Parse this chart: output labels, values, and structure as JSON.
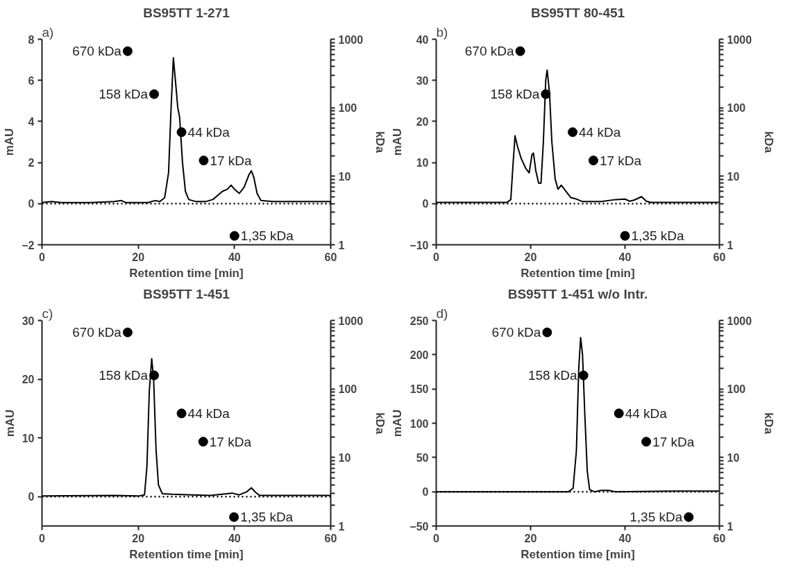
{
  "chart_data": [
    {
      "type": "line",
      "title": "BS95TT 1-271",
      "annotations": [
        "a)"
      ],
      "xlabel": "Retention time [min]",
      "ylabel": "mAU",
      "y2label": "kDa",
      "xlim": [
        0,
        60
      ],
      "xticks": [
        0,
        20,
        40,
        60
      ],
      "ylim": [
        -2,
        8
      ],
      "yticks": [
        -2,
        0,
        2,
        4,
        6,
        8
      ],
      "y2lim": [
        1,
        1000
      ],
      "y2ticks": [
        1,
        {
          "value": 2,
          "label": null
        },
        {
          "value": 3,
          "label": null
        },
        {
          "value": 4,
          "label": null
        },
        {
          "value": 5,
          "label": null
        },
        {
          "value": 6,
          "label": null
        },
        {
          "value": 7,
          "label": null
        },
        {
          "value": 8,
          "label": null
        },
        {
          "value": 9,
          "label": null
        },
        10,
        {
          "value": 20,
          "label": null
        },
        {
          "value": 30,
          "label": null
        },
        {
          "value": 40,
          "label": null
        },
        {
          "value": 50,
          "label": null
        },
        {
          "value": 60,
          "label": null
        },
        {
          "value": 70,
          "label": null
        },
        {
          "value": 80,
          "label": null
        },
        {
          "value": 90,
          "label": null
        },
        100,
        {
          "value": 200,
          "label": null
        },
        {
          "value": 300,
          "label": null
        },
        {
          "value": 400,
          "label": null
        },
        {
          "value": 500,
          "label": null
        },
        {
          "value": 600,
          "label": null
        },
        {
          "value": 700,
          "label": null
        },
        {
          "value": 800,
          "label": null
        },
        {
          "value": 900,
          "label": null
        },
        1000
      ],
      "log": "y2",
      "grid": false,
      "ref_lines": [
        {
          "axis": "y",
          "value": 0,
          "line_style": "dotted",
          "color": "#000000"
        }
      ],
      "series": [
        {
          "color": "#000000",
          "line_style": "solid",
          "x": [
            0,
            2,
            4,
            10,
            15,
            16.5,
            17.5,
            22,
            23.5,
            24.5,
            25.5,
            26.3,
            26.8,
            27.3,
            27.8,
            28.2,
            28.6,
            29.2,
            29.8,
            30.5,
            32,
            34,
            35.5,
            36.5,
            37.5,
            38.5,
            39.3,
            40,
            41,
            42,
            43,
            43.5,
            44,
            44.7,
            45.5,
            48,
            55,
            60
          ],
          "values": [
            0.05,
            0.1,
            0.05,
            0.05,
            0.1,
            0.15,
            0.05,
            0.05,
            0.15,
            0.1,
            0.3,
            1.5,
            4.5,
            7.1,
            5.8,
            4.7,
            4.2,
            2.0,
            0.6,
            0.2,
            0.1,
            0.1,
            0.2,
            0.4,
            0.6,
            0.7,
            0.9,
            0.7,
            0.5,
            0.8,
            1.4,
            1.6,
            1.3,
            0.5,
            0.15,
            0.1,
            0.1,
            0.1
          ]
        },
        {
          "type": "scatter",
          "axis": "y2",
          "color": "#000000",
          "marker": "circle",
          "x": [
            17.8,
            23.3,
            29,
            33.6,
            40
          ],
          "values": [
            670,
            158,
            44,
            17,
            1.35
          ],
          "value_labels": [
            "670 kDa",
            "158 kDa",
            "44 kDa",
            "17 kDa",
            "1,35 kDa"
          ]
        }
      ]
    },
    {
      "type": "line",
      "title": "BS95TT 80-451",
      "annotations": [
        "b)"
      ],
      "xlabel": "Retention time [min]",
      "ylabel": "mAU",
      "y2label": "kDa",
      "xlim": [
        0,
        60
      ],
      "xticks": [
        0,
        20,
        40,
        60
      ],
      "ylim": [
        -10,
        40
      ],
      "yticks": [
        -10,
        0,
        10,
        20,
        30,
        40
      ],
      "y2lim": [
        1,
        1000
      ],
      "y2ticks": [
        1,
        {
          "value": 2,
          "label": null
        },
        {
          "value": 3,
          "label": null
        },
        {
          "value": 4,
          "label": null
        },
        {
          "value": 5,
          "label": null
        },
        {
          "value": 6,
          "label": null
        },
        {
          "value": 7,
          "label": null
        },
        {
          "value": 8,
          "label": null
        },
        {
          "value": 9,
          "label": null
        },
        10,
        {
          "value": 20,
          "label": null
        },
        {
          "value": 30,
          "label": null
        },
        {
          "value": 40,
          "label": null
        },
        {
          "value": 50,
          "label": null
        },
        {
          "value": 60,
          "label": null
        },
        {
          "value": 70,
          "label": null
        },
        {
          "value": 80,
          "label": null
        },
        {
          "value": 90,
          "label": null
        },
        100,
        {
          "value": 200,
          "label": null
        },
        {
          "value": 300,
          "label": null
        },
        {
          "value": 400,
          "label": null
        },
        {
          "value": 500,
          "label": null
        },
        {
          "value": 600,
          "label": null
        },
        {
          "value": 700,
          "label": null
        },
        {
          "value": 800,
          "label": null
        },
        {
          "value": 900,
          "label": null
        },
        1000
      ],
      "log": "y2",
      "grid": false,
      "ref_lines": [
        {
          "axis": "y",
          "value": 0,
          "line_style": "dotted",
          "color": "#000000"
        }
      ],
      "series": [
        {
          "color": "#000000",
          "line_style": "solid",
          "x": [
            0,
            10,
            15,
            15.8,
            16.3,
            16.7,
            17.2,
            18,
            19,
            19.7,
            20.3,
            20.6,
            21.1,
            21.7,
            22.2,
            22.7,
            23.2,
            23.5,
            24,
            24.5,
            25.2,
            25.8,
            26.5,
            27.5,
            28.5,
            29.5,
            31,
            35,
            38,
            40,
            41,
            42,
            43.5,
            44.5,
            45.5,
            60
          ],
          "values": [
            0.3,
            0.3,
            0.3,
            1,
            10,
            16.5,
            14,
            11,
            8.5,
            7.5,
            12,
            12.3,
            8,
            5,
            5,
            15,
            30,
            32.5,
            27,
            15,
            6,
            3.5,
            4.5,
            3,
            1.5,
            1.2,
            0.5,
            0.5,
            1,
            1.1,
            0.6,
            0.9,
            1.7,
            0.6,
            0.3,
            0.3
          ]
        },
        {
          "type": "scatter",
          "axis": "y2",
          "color": "#000000",
          "marker": "circle",
          "x": [
            17.8,
            23.2,
            28.9,
            33.3,
            40
          ],
          "values": [
            670,
            158,
            44,
            17,
            1.35
          ],
          "value_labels": [
            "670 kDa",
            "158 kDa",
            "44 kDa",
            "17 kDa",
            "1,35 kDa"
          ]
        }
      ]
    },
    {
      "type": "line",
      "title": "BS95TT 1-451",
      "annotations": [
        "c)"
      ],
      "xlabel": "Retention time [min]",
      "ylabel": "mAU",
      "y2label": "kDa",
      "xlim": [
        0,
        60
      ],
      "xticks": [
        0,
        20,
        40,
        60
      ],
      "ylim": [
        -5,
        30
      ],
      "yticks": [
        0,
        10,
        20,
        30
      ],
      "y2lim": [
        1,
        1000
      ],
      "y2ticks": [
        1,
        {
          "value": 2,
          "label": null
        },
        {
          "value": 3,
          "label": null
        },
        {
          "value": 4,
          "label": null
        },
        {
          "value": 5,
          "label": null
        },
        {
          "value": 6,
          "label": null
        },
        {
          "value": 7,
          "label": null
        },
        {
          "value": 8,
          "label": null
        },
        {
          "value": 9,
          "label": null
        },
        10,
        {
          "value": 20,
          "label": null
        },
        {
          "value": 30,
          "label": null
        },
        {
          "value": 40,
          "label": null
        },
        {
          "value": 50,
          "label": null
        },
        {
          "value": 60,
          "label": null
        },
        {
          "value": 70,
          "label": null
        },
        {
          "value": 80,
          "label": null
        },
        {
          "value": 90,
          "label": null
        },
        100,
        {
          "value": 200,
          "label": null
        },
        {
          "value": 300,
          "label": null
        },
        {
          "value": 400,
          "label": null
        },
        {
          "value": 500,
          "label": null
        },
        {
          "value": 600,
          "label": null
        },
        {
          "value": 700,
          "label": null
        },
        {
          "value": 800,
          "label": null
        },
        {
          "value": 900,
          "label": null
        },
        1000
      ],
      "log": "y2",
      "grid": false,
      "ref_lines": [
        {
          "axis": "y",
          "value": 0,
          "line_style": "dotted",
          "color": "#000000"
        }
      ],
      "series": [
        {
          "color": "#000000",
          "line_style": "solid",
          "x": [
            0,
            15,
            20,
            21.3,
            21.8,
            22.3,
            22.8,
            23.2,
            23.7,
            24.2,
            25,
            27,
            35,
            39.5,
            41,
            42.5,
            43.5,
            44.3,
            45.2,
            60
          ],
          "values": [
            0.1,
            0.2,
            0.1,
            0.3,
            5,
            18,
            23.5,
            20,
            8,
            2,
            0.5,
            0.4,
            0.2,
            0.6,
            0.3,
            0.8,
            1.5,
            0.8,
            0.2,
            0.2
          ]
        },
        {
          "type": "scatter",
          "axis": "y2",
          "color": "#000000",
          "marker": "circle",
          "x": [
            17.8,
            23.3,
            29,
            33.5,
            39.9
          ],
          "values": [
            670,
            158,
            44,
            17,
            1.35
          ],
          "value_labels": [
            "670 kDa",
            "158 kDa",
            "44 kDa",
            "17 kDa",
            "1,35 kDa"
          ]
        }
      ]
    },
    {
      "type": "line",
      "title": "BS95TT 1-451 w/o Intr.",
      "annotations": [
        "d)"
      ],
      "xlabel": "Retention time [min]",
      "ylabel": "mAU",
      "y2label": "kDa",
      "xlim": [
        0,
        60
      ],
      "xticks": [
        0,
        20,
        40,
        60
      ],
      "ylim": [
        -50,
        250
      ],
      "yticks": [
        -50,
        0,
        50,
        100,
        150,
        200,
        250
      ],
      "y2lim": [
        1,
        1000
      ],
      "y2ticks": [
        1,
        {
          "value": 2,
          "label": null
        },
        {
          "value": 3,
          "label": null
        },
        {
          "value": 4,
          "label": null
        },
        {
          "value": 5,
          "label": null
        },
        {
          "value": 6,
          "label": null
        },
        {
          "value": 7,
          "label": null
        },
        {
          "value": 8,
          "label": null
        },
        {
          "value": 9,
          "label": null
        },
        10,
        {
          "value": 20,
          "label": null
        },
        {
          "value": 30,
          "label": null
        },
        {
          "value": 40,
          "label": null
        },
        {
          "value": 50,
          "label": null
        },
        {
          "value": 60,
          "label": null
        },
        {
          "value": 70,
          "label": null
        },
        {
          "value": 80,
          "label": null
        },
        {
          "value": 90,
          "label": null
        },
        100,
        {
          "value": 200,
          "label": null
        },
        {
          "value": 300,
          "label": null
        },
        {
          "value": 400,
          "label": null
        },
        {
          "value": 500,
          "label": null
        },
        {
          "value": 600,
          "label": null
        },
        {
          "value": 700,
          "label": null
        },
        {
          "value": 800,
          "label": null
        },
        {
          "value": 900,
          "label": null
        },
        1000
      ],
      "log": "y2",
      "grid": false,
      "ref_lines": [
        {
          "axis": "y",
          "value": 0,
          "line_style": "dotted",
          "color": "#000000"
        }
      ],
      "series": [
        {
          "color": "#000000",
          "line_style": "solid",
          "x": [
            0,
            25,
            28,
            29,
            29.7,
            30.2,
            30.6,
            31,
            31.5,
            32,
            32.5,
            33.5,
            35,
            36.5,
            38,
            50,
            60
          ],
          "values": [
            0,
            0,
            0,
            5,
            60,
            180,
            225,
            200,
            110,
            30,
            3,
            0,
            2,
            2,
            0,
            1,
            1
          ]
        },
        {
          "type": "scatter",
          "axis": "y2",
          "color": "#000000",
          "marker": "circle",
          "x": [
            23.5,
            31.2,
            38.7,
            44.5,
            53.5
          ],
          "values": [
            670,
            158,
            44,
            17,
            1.35
          ],
          "value_labels": [
            "670 kDa",
            "158 kDa",
            "44 kDa",
            "17 kDa",
            "1,35 kDa"
          ]
        }
      ]
    }
  ]
}
